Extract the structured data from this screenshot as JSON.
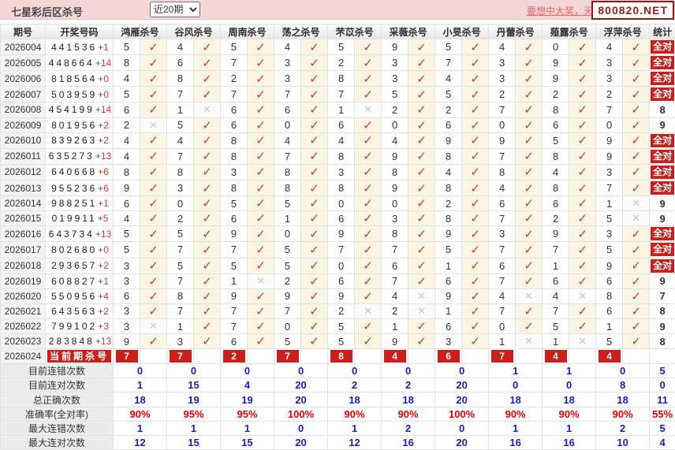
{
  "topbar": {
    "title": "七星彩后区杀号",
    "dropdown": "近20期",
    "promo_text": "要想中大奖，天",
    "promo_overlay": "800820.NET"
  },
  "icons": {
    "check": "✓",
    "cross": "✕"
  },
  "colors": {
    "accent_red": "#c9201d",
    "check_red": "#cc3b36",
    "cross_gray": "#c8c8c8",
    "summary_blue": "#1d1dbe",
    "summary_red": "#e50000",
    "topbar_pink": "#f4d6d6"
  },
  "table": {
    "col_period": "期号",
    "col_draw": "开奖号码",
    "col_stat": "统计",
    "plus_sign": "+",
    "all_correct_label": "全对",
    "kill_columns": [
      "鸿雁杀号",
      "谷风杀号",
      "周南杀号",
      "荡之杀号",
      "芣苡杀号",
      "采薇杀号",
      "小旻杀号",
      "丹蕾杀号",
      "薤露杀号",
      "浮萍杀号"
    ],
    "rows": [
      {
        "period": "2026004",
        "draw": "441536",
        "plus": "1",
        "values": [
          "5",
          "4",
          "5",
          "4",
          "5",
          "9",
          "5",
          "4",
          "0",
          "4"
        ],
        "marks": "cccccccccc",
        "stat": "全对",
        "all": true
      },
      {
        "period": "2026005",
        "draw": "448664",
        "plus": "14",
        "values": [
          "8",
          "6",
          "7",
          "3",
          "2",
          "3",
          "7",
          "3",
          "9",
          "3"
        ],
        "marks": "cccccccccc",
        "stat": "全对",
        "all": true
      },
      {
        "period": "2026006",
        "draw": "818564",
        "plus": "0",
        "values": [
          "4",
          "8",
          "2",
          "3",
          "8",
          "3",
          "4",
          "3",
          "9",
          "3"
        ],
        "marks": "cccccccccc",
        "stat": "全对",
        "all": true
      },
      {
        "period": "2026007",
        "draw": "503959",
        "plus": "0",
        "values": [
          "5",
          "7",
          "7",
          "7",
          "7",
          "5",
          "5",
          "2",
          "2",
          "2"
        ],
        "marks": "cccccccccc",
        "stat": "全对",
        "all": true
      },
      {
        "period": "2026008",
        "draw": "454199",
        "plus": "14",
        "values": [
          "6",
          "1",
          "6",
          "6",
          "1",
          "2",
          "2",
          "7",
          "8",
          "7"
        ],
        "marks": "cxccxccccc",
        "stat": "8",
        "all": false
      },
      {
        "period": "2026009",
        "draw": "801956",
        "plus": "2",
        "values": [
          "2",
          "5",
          "6",
          "0",
          "6",
          "0",
          "6",
          "0",
          "6",
          "0"
        ],
        "marks": "xccccccccc",
        "stat": "9",
        "all": false
      },
      {
        "period": "2026010",
        "draw": "839263",
        "plus": "2",
        "values": [
          "4",
          "4",
          "8",
          "4",
          "4",
          "4",
          "9",
          "9",
          "5",
          "9"
        ],
        "marks": "cccccccccc",
        "stat": "全对",
        "all": true
      },
      {
        "period": "2026011",
        "draw": "635273",
        "plus": "13",
        "values": [
          "4",
          "7",
          "8",
          "7",
          "8",
          "9",
          "8",
          "7",
          "8",
          "9"
        ],
        "marks": "cccccccccc",
        "stat": "全对",
        "all": true
      },
      {
        "period": "2026012",
        "draw": "640668",
        "plus": "6",
        "values": [
          "8",
          "8",
          "3",
          "8",
          "3",
          "8",
          "4",
          "8",
          "4",
          "3"
        ],
        "marks": "cccccccccc",
        "stat": "全对",
        "all": true
      },
      {
        "period": "2026013",
        "draw": "955236",
        "plus": "6",
        "values": [
          "9",
          "3",
          "8",
          "8",
          "8",
          "9",
          "8",
          "4",
          "8",
          "7"
        ],
        "marks": "cccccccccc",
        "stat": "全对",
        "all": true
      },
      {
        "period": "2026014",
        "draw": "988251",
        "plus": "1",
        "values": [
          "6",
          "0",
          "5",
          "5",
          "0",
          "0",
          "2",
          "6",
          "6",
          "1"
        ],
        "marks": "cccccccccx",
        "stat": "9",
        "all": false
      },
      {
        "period": "2026015",
        "draw": "019911",
        "plus": "5",
        "values": [
          "4",
          "2",
          "6",
          "1",
          "6",
          "3",
          "8",
          "7",
          "2",
          "5"
        ],
        "marks": "cccccccccx",
        "stat": "9",
        "all": false
      },
      {
        "period": "2026016",
        "draw": "643734",
        "plus": "13",
        "values": [
          "5",
          "5",
          "9",
          "0",
          "9",
          "8",
          "9",
          "3",
          "9",
          "3"
        ],
        "marks": "cccccccccc",
        "stat": "全对",
        "all": true
      },
      {
        "period": "2026017",
        "draw": "802680",
        "plus": "0",
        "values": [
          "5",
          "7",
          "7",
          "5",
          "7",
          "7",
          "5",
          "7",
          "7",
          "5"
        ],
        "marks": "cccccccccc",
        "stat": "全对",
        "all": true
      },
      {
        "period": "2026018",
        "draw": "293657",
        "plus": "2",
        "values": [
          "3",
          "5",
          "5",
          "5",
          "0",
          "6",
          "1",
          "6",
          "1",
          "9"
        ],
        "marks": "cccccccccc",
        "stat": "全对",
        "all": true
      },
      {
        "period": "2026019",
        "draw": "608827",
        "plus": "1",
        "values": [
          "3",
          "7",
          "1",
          "2",
          "6",
          "7",
          "6",
          "7",
          "6",
          "6"
        ],
        "marks": "ccxccccccc",
        "stat": "9",
        "all": false
      },
      {
        "period": "2026020",
        "draw": "550956",
        "plus": "4",
        "values": [
          "6",
          "8",
          "9",
          "9",
          "9",
          "4",
          "9",
          "4",
          "4",
          "8"
        ],
        "marks": "cccccxcxxc",
        "stat": "7",
        "all": false
      },
      {
        "period": "2026021",
        "draw": "643563",
        "plus": "2",
        "values": [
          "3",
          "7",
          "7",
          "7",
          "2",
          "2",
          "1",
          "7",
          "7",
          "6"
        ],
        "marks": "ccccxxcccc",
        "stat": "8",
        "all": false
      },
      {
        "period": "2026022",
        "draw": "799102",
        "plus": "3",
        "values": [
          "3",
          "1",
          "7",
          "0",
          "5",
          "1",
          "6",
          "0",
          "5",
          "1"
        ],
        "marks": "xccccccccc",
        "stat": "9",
        "all": false
      },
      {
        "period": "2026023",
        "draw": "283848",
        "plus": "13",
        "values": [
          "9",
          "3",
          "6",
          "5",
          "5",
          "9",
          "3",
          "1",
          "1",
          "5"
        ],
        "marks": "cccccccxxc",
        "stat": "8",
        "all": false
      }
    ],
    "current": {
      "period": "2026024",
      "label": "当前期杀号",
      "values": [
        "7",
        "7",
        "2",
        "7",
        "8",
        "4",
        "6",
        "7",
        "4",
        "4"
      ]
    },
    "summary": [
      {
        "label": "目前连错次数",
        "values": [
          "0",
          "0",
          "0",
          "0",
          "0",
          "0",
          "0",
          "1",
          "1",
          "0"
        ],
        "stat": "5",
        "color": "blue"
      },
      {
        "label": "目前连对次数",
        "values": [
          "1",
          "15",
          "4",
          "20",
          "2",
          "2",
          "20",
          "0",
          "0",
          "8"
        ],
        "stat": "0",
        "color": "blue"
      },
      {
        "label": "总正确次数",
        "values": [
          "18",
          "19",
          "19",
          "20",
          "18",
          "18",
          "20",
          "18",
          "18",
          "18"
        ],
        "stat": "11",
        "color": "blue"
      },
      {
        "label": "准确率(全对率)",
        "values": [
          "90%",
          "95%",
          "95%",
          "100%",
          "90%",
          "90%",
          "100%",
          "90%",
          "90%",
          "90%"
        ],
        "stat": "55%",
        "color": "red"
      },
      {
        "label": "最大连错次数",
        "values": [
          "1",
          "1",
          "1",
          "0",
          "1",
          "2",
          "0",
          "1",
          "1",
          "2"
        ],
        "stat": "5",
        "color": "blue"
      },
      {
        "label": "最大连对次数",
        "values": [
          "12",
          "15",
          "15",
          "20",
          "12",
          "16",
          "20",
          "16",
          "16",
          "10"
        ],
        "stat": "4",
        "color": "blue"
      }
    ]
  }
}
